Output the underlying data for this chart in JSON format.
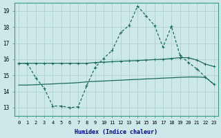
{
  "xlabel": "Humidex (Indice chaleur)",
  "bg_color": "#cce8e8",
  "grid_color": "#b0d0d0",
  "line_color": "#1a6b5a",
  "xlim": [
    -0.5,
    23.5
  ],
  "ylim": [
    12.5,
    19.5
  ],
  "yticks": [
    13,
    14,
    15,
    16,
    17,
    18,
    19
  ],
  "xticks": [
    0,
    1,
    2,
    3,
    4,
    5,
    6,
    7,
    8,
    9,
    10,
    11,
    12,
    13,
    14,
    15,
    16,
    17,
    18,
    19,
    20,
    21,
    22,
    23
  ],
  "line1_x": [
    0,
    1,
    2,
    3,
    4,
    5,
    6,
    7,
    8,
    9,
    10,
    11,
    12,
    13,
    14,
    15,
    16,
    17,
    18,
    19,
    20,
    21,
    22,
    23
  ],
  "line1_y": [
    15.75,
    15.75,
    14.85,
    14.2,
    13.1,
    13.1,
    13.0,
    13.05,
    14.35,
    15.5,
    16.05,
    16.55,
    17.65,
    18.1,
    19.3,
    18.7,
    18.1,
    16.75,
    18.05,
    16.25,
    15.8,
    15.4,
    14.9,
    14.45
  ],
  "line2_x": [
    0,
    1,
    2,
    3,
    4,
    5,
    6,
    7,
    8,
    9,
    10,
    11,
    12,
    13,
    14,
    15,
    16,
    17,
    18,
    19,
    20,
    21,
    22,
    23
  ],
  "line2_y": [
    15.75,
    15.75,
    15.75,
    15.75,
    15.75,
    15.75,
    15.75,
    15.75,
    15.75,
    15.8,
    15.82,
    15.85,
    15.88,
    15.9,
    15.92,
    15.95,
    15.98,
    16.0,
    16.05,
    16.1,
    16.1,
    15.95,
    15.7,
    15.55
  ],
  "line3_x": [
    0,
    1,
    2,
    3,
    4,
    5,
    6,
    7,
    8,
    9,
    10,
    11,
    12,
    13,
    14,
    15,
    16,
    17,
    18,
    19,
    20,
    21,
    22,
    23
  ],
  "line3_y": [
    14.4,
    14.4,
    14.42,
    14.45,
    14.47,
    14.5,
    14.52,
    14.55,
    14.6,
    14.63,
    14.65,
    14.68,
    14.7,
    14.73,
    14.75,
    14.78,
    14.8,
    14.83,
    14.85,
    14.88,
    14.9,
    14.9,
    14.88,
    14.45
  ]
}
